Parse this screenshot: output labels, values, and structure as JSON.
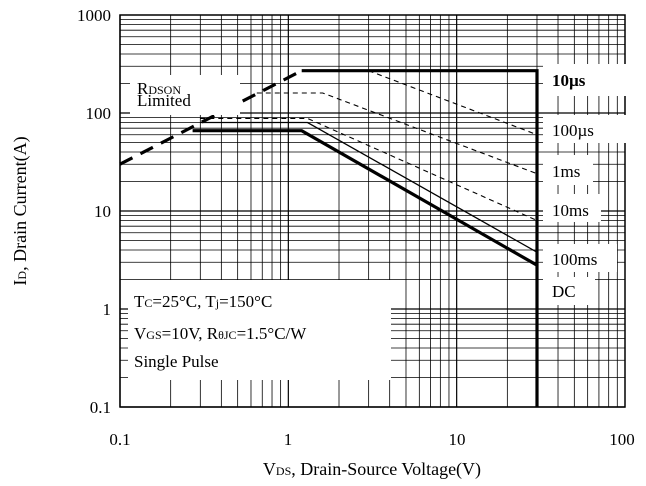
{
  "chart_data": {
    "type": "line",
    "xscale": "log",
    "yscale": "log",
    "xlim": [
      0.1,
      100
    ],
    "ylim": [
      0.1,
      1000
    ],
    "grid": true,
    "x_ticks": [
      "0.1",
      "1",
      "10",
      "100"
    ],
    "y_ticks": [
      "1000",
      "100",
      "10",
      "1",
      "0.1"
    ],
    "xlabel": {
      "main": "V",
      "sub": "DS",
      "rest": ", Drain-Source Voltage(V)"
    },
    "ylabel": {
      "main": "I",
      "sub": "D",
      "rest": ", Drain Current(A)"
    },
    "rdson_label": {
      "main": "R",
      "sub": "DSON",
      "line2": "Limited"
    },
    "conditions": {
      "line1": {
        "a": "T",
        "a_sub": "C",
        "b": "=25°C, T",
        "b_sub": "j",
        "c": "=150°C"
      },
      "line2": {
        "a": "V",
        "a_sub": "GS",
        "b": "=10V, R",
        "b_sub": "θJC",
        "c": "=1.5°C/W"
      },
      "line3": "Single Pulse"
    },
    "rdson_limit": {
      "points": [
        [
          0.1,
          30
        ],
        [
          1.2,
          270
        ]
      ]
    },
    "series": [
      {
        "name": "10µs",
        "style": "thick",
        "points": [
          [
            1.2,
            270
          ],
          [
            30,
            270
          ],
          [
            30,
            0.1
          ]
        ]
      },
      {
        "name": "100µs",
        "style": "dashed",
        "points": [
          [
            3,
            270
          ],
          [
            30,
            60
          ]
        ]
      },
      {
        "name": "1ms",
        "style": "dashed",
        "points": [
          [
            0.65,
            160
          ],
          [
            1.6,
            160
          ],
          [
            30,
            24
          ]
        ]
      },
      {
        "name": "10ms",
        "style": "dashed",
        "points": [
          [
            0.3,
            88
          ],
          [
            1.3,
            88
          ],
          [
            30,
            8
          ]
        ]
      },
      {
        "name": "100ms",
        "style": "thin",
        "points": [
          [
            0.3,
            80
          ],
          [
            1.3,
            80
          ],
          [
            30,
            3.8
          ]
        ]
      },
      {
        "name": "DC",
        "style": "thick",
        "points": [
          [
            0.27,
            66
          ],
          [
            1.2,
            66
          ],
          [
            30,
            2.8
          ]
        ]
      }
    ],
    "labels": {
      "s10us": "10µs",
      "s100us": "100µs",
      "s1ms": "1ms",
      "s10ms": "10ms",
      "s100ms": "100ms",
      "sdc": "DC"
    }
  }
}
